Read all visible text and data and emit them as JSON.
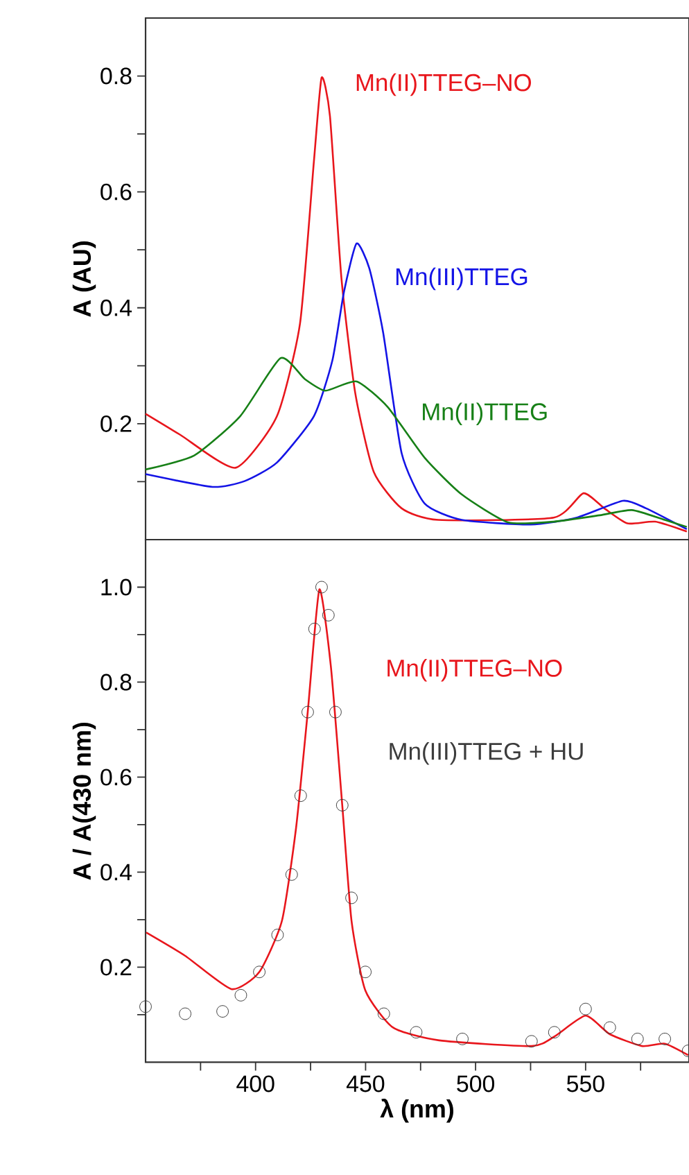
{
  "chart_data": [
    {
      "type": "line",
      "ylabel": "A (AU)",
      "xlim": [
        350,
        597
      ],
      "ylim": [
        0,
        0.9
      ],
      "tick_labels": "y",
      "legend": false,
      "yticks": [
        {
          "value": 0.1,
          "label": null
        },
        0.2,
        {
          "value": 0.3,
          "label": null
        },
        0.4,
        {
          "value": 0.5,
          "label": null
        },
        0.6,
        {
          "value": 0.7,
          "label": null
        },
        0.8
      ],
      "series": [
        {
          "name": "Mn(II)TTEG–NO",
          "color": "#e8161c",
          "x": [
            350,
            365.7,
            390.9,
            409.7,
            420.2,
            426.5,
            430,
            433.8,
            439,
            445.3,
            453.7,
            466.4,
            483,
            535.5,
            549,
            558.5,
            569,
            581.6,
            596
          ],
          "values": [
            0.217,
            0.181,
            0.124,
            0.213,
            0.373,
            0.652,
            0.797,
            0.731,
            0.452,
            0.253,
            0.117,
            0.054,
            0.034,
            0.038,
            0.08,
            0.054,
            0.028,
            0.031,
            0.014
          ]
        },
        {
          "name": "Mn(III)TTEG",
          "color": "#1414e6",
          "x": [
            350,
            380.4,
            395,
            409.7,
            426.5,
            434.9,
            440.2,
            445.9,
            451.7,
            458,
            466.4,
            476.9,
            493.7,
            525,
            546,
            567,
            577.5,
            596
          ],
          "values": [
            0.113,
            0.091,
            0.101,
            0.133,
            0.213,
            0.309,
            0.428,
            0.511,
            0.468,
            0.357,
            0.149,
            0.062,
            0.034,
            0.026,
            0.038,
            0.067,
            0.054,
            0.018
          ]
        },
        {
          "name": "Mn(II)TTEG",
          "color": "#178017",
          "x": [
            350,
            372,
            393,
            411.3,
            422.4,
            431.8,
            445.9,
            460,
            476.9,
            493.7,
            514.7,
            535.5,
            556.4,
            571,
            586,
            596
          ],
          "values": [
            0.121,
            0.145,
            0.213,
            0.313,
            0.277,
            0.257,
            0.273,
            0.229,
            0.141,
            0.078,
            0.03,
            0.031,
            0.042,
            0.051,
            0.034,
            0.022
          ]
        }
      ]
    },
    {
      "type": "line",
      "xlabel": "λ (nm)",
      "ylabel": "A / A(430 nm)",
      "xlim": [
        350,
        597
      ],
      "ylim": [
        0,
        1.1
      ],
      "legend": false,
      "xticks": [
        {
          "value": 375,
          "label": null
        },
        400,
        {
          "value": 425,
          "label": null
        },
        450,
        {
          "value": 475,
          "label": null
        },
        500,
        {
          "value": 525,
          "label": null
        },
        550,
        {
          "value": 575,
          "label": null
        }
      ],
      "yticks": [
        {
          "value": 0.1,
          "label": null
        },
        0.2,
        {
          "value": 0.3,
          "label": null
        },
        0.4,
        {
          "value": 0.5,
          "label": null
        },
        0.6,
        {
          "value": 0.7,
          "label": null
        },
        0.8,
        {
          "value": 0.9,
          "label": null
        },
        {
          "value": 1,
          "label": "1.0"
        }
      ],
      "series": [
        {
          "name": "Mn(III)TTEG + HU",
          "type": "scatter",
          "marker": "circle",
          "color": "#3c3c3c",
          "x": [
            350,
            368,
            385,
            393.3,
            401.7,
            410,
            416.4,
            420.5,
            423.7,
            426.8,
            430,
            433.1,
            436.3,
            439.4,
            443.6,
            449.9,
            458.3,
            473,
            494,
            525.4,
            535.8,
            550,
            561,
            573.6,
            586,
            596.6
          ],
          "values": [
            0.117,
            0.102,
            0.107,
            0.141,
            0.19,
            0.268,
            0.395,
            0.561,
            0.737,
            0.912,
            1.0,
            0.941,
            0.737,
            0.541,
            0.346,
            0.19,
            0.102,
            0.063,
            0.049,
            0.044,
            0.063,
            0.112,
            0.073,
            0.049,
            0.049,
            0.024
          ]
        },
        {
          "name": "Mn(II)TTEG–NO",
          "color": "#e8161c",
          "x": [
            350.3,
            368,
            389,
            401.7,
            412,
            418.4,
            423.7,
            429,
            434.2,
            439.4,
            443.6,
            449.9,
            462.5,
            483.4,
            525.4,
            535.8,
            550,
            561,
            575.7,
            586,
            596.6
          ],
          "values": [
            0.273,
            0.224,
            0.154,
            0.19,
            0.298,
            0.493,
            0.737,
            0.995,
            0.834,
            0.541,
            0.298,
            0.151,
            0.073,
            0.046,
            0.034,
            0.054,
            0.098,
            0.059,
            0.034,
            0.039,
            0.015
          ]
        }
      ]
    }
  ]
}
